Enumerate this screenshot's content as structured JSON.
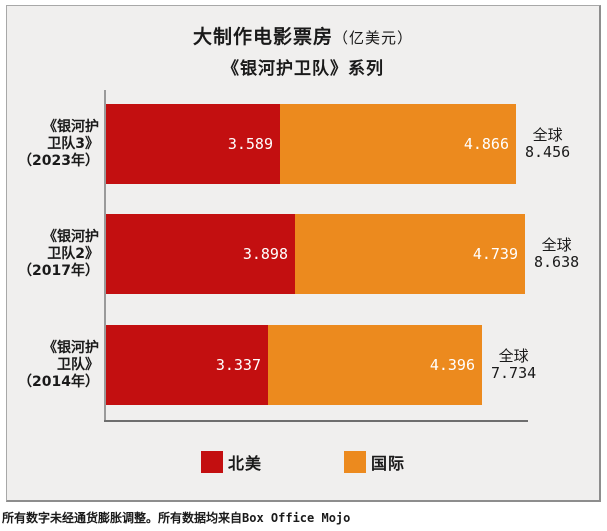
{
  "title": {
    "main": "大制作电影票房",
    "unit": "（亿美元）",
    "subtitle": "《银河护卫队》系列"
  },
  "footer": "所有数字未经通货膨胀调整。所有数据均来自Box Office Mojo",
  "colors": {
    "north_america": "#c30f10",
    "international": "#ec8a1e",
    "panel_background": "#f0efee",
    "panel_border": "#8d8d8d",
    "bar_value_text": "#ffffff",
    "text": "#1a1a1a"
  },
  "chart_data": {
    "type": "bar",
    "orientation": "horizontal",
    "stacked": true,
    "grid": false,
    "legend_position": "bottom",
    "title": "大制作电影票房（亿美元）",
    "subtitle": "《银河护卫队》系列",
    "value_unit": "亿美元",
    "xlim": [
      0,
      8.638
    ],
    "categories": [
      "《银河护卫队3》（2023年）",
      "《银河护卫队2》（2017年）",
      "《银河护卫队》（2014年）"
    ],
    "category_display": [
      "《银河护\n卫队3》\n（2023年）",
      "《银河护\n卫队2》\n（2017年）",
      "《银河护\n卫队》\n（2014年）"
    ],
    "series": [
      {
        "name": "北美",
        "color": "#c30f10",
        "values": [
          3.589,
          3.898,
          3.337
        ]
      },
      {
        "name": "国际",
        "color": "#ec8a1e",
        "values": [
          4.866,
          4.739,
          4.396
        ]
      }
    ],
    "totals": {
      "label": "全球",
      "values": [
        8.456,
        8.638,
        7.734
      ]
    }
  }
}
